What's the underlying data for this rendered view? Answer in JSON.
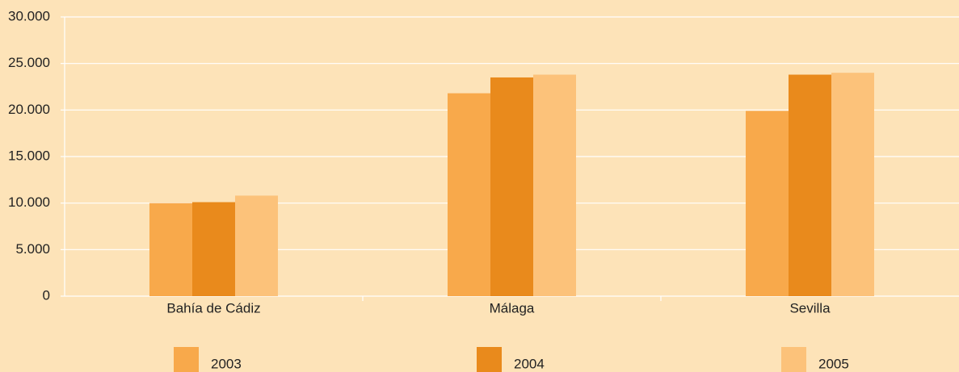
{
  "chart_data": {
    "type": "bar",
    "categories": [
      "Bahía de Cádiz",
      "Málaga",
      "Sevilla"
    ],
    "series": [
      {
        "name": "2003",
        "color": "#f8a94b",
        "values": [
          10000,
          21800,
          19900
        ]
      },
      {
        "name": "2004",
        "color": "#e98a1c",
        "values": [
          10100,
          23500,
          23800
        ]
      },
      {
        "name": "2005",
        "color": "#fcc27a",
        "values": [
          10800,
          23800,
          24000
        ]
      }
    ],
    "ylim": [
      0,
      30000
    ],
    "yticks": [
      0,
      {
        "value": 5000,
        "label": "5.000"
      },
      {
        "value": 10000,
        "label": "10.000"
      },
      {
        "value": 15000,
        "label": "15.000"
      },
      {
        "value": 20000,
        "label": "20.000"
      },
      {
        "value": 25000,
        "label": "25.000"
      },
      {
        "value": 30000,
        "label": "30.000"
      }
    ],
    "grid": true
  }
}
